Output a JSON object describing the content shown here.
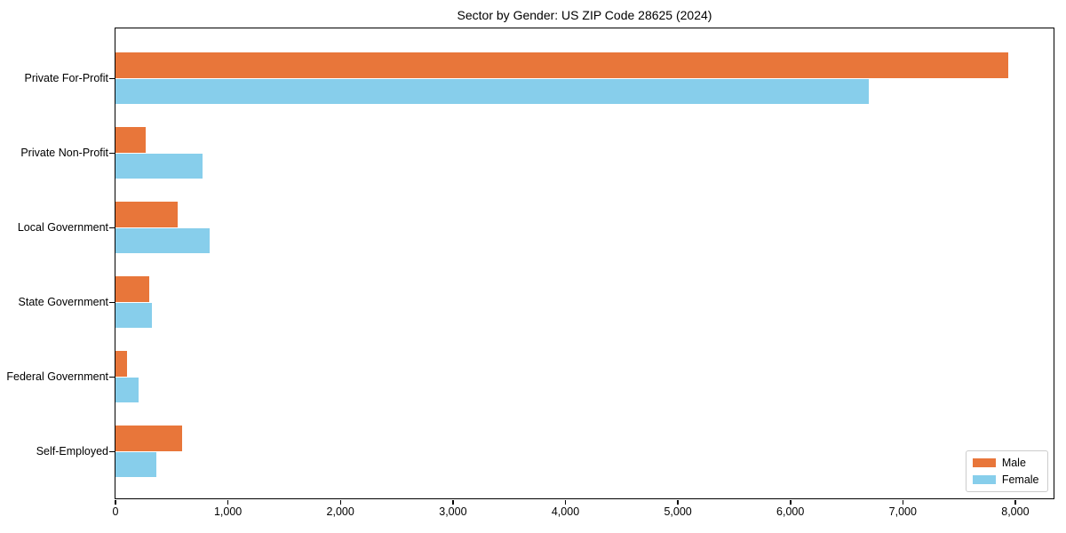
{
  "title": "Sector by Gender: US ZIP Code 28625 (2024)",
  "chart_data": {
    "type": "bar",
    "orientation": "horizontal",
    "title": "Sector by Gender: US ZIP Code 28625 (2024)",
    "categories": [
      "Private For-Profit",
      "Private Non-Profit",
      "Local Government",
      "State Government",
      "Federal Government",
      "Self-Employed"
    ],
    "series": [
      {
        "name": "Male",
        "color": "#e8763a",
        "values": [
          7940,
          270,
          560,
          305,
          110,
          595
        ]
      },
      {
        "name": "Female",
        "color": "#87ceeb",
        "values": [
          6700,
          775,
          840,
          325,
          205,
          370
        ]
      }
    ],
    "xlabel": "",
    "ylabel": "",
    "xlim": [
      0,
      8340
    ],
    "xticks": [
      0,
      1000,
      2000,
      3000,
      4000,
      5000,
      6000,
      7000,
      8000
    ],
    "xtick_labels": [
      "0",
      "1,000",
      "2,000",
      "3,000",
      "4,000",
      "5,000",
      "6,000",
      "7,000",
      "8,000"
    ],
    "grid": false,
    "legend_position": "lower right"
  }
}
